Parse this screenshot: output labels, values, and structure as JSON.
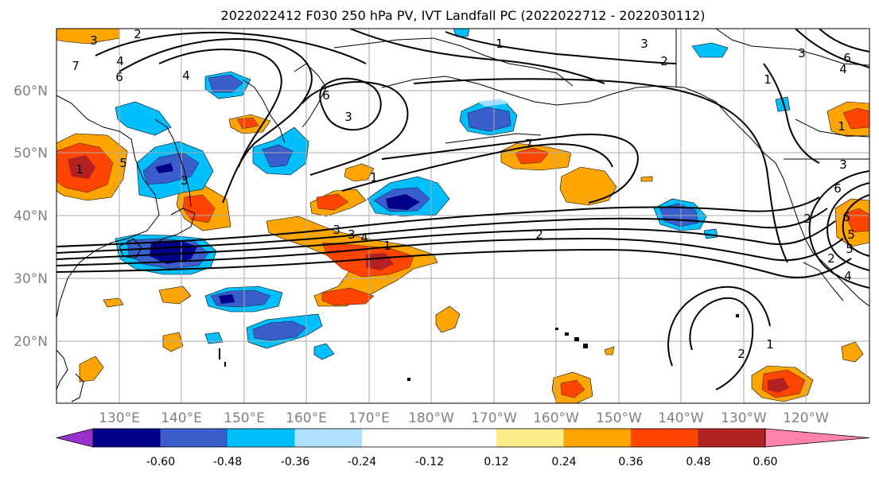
{
  "title": "2022022412 F030 250 hPa PV, IVT Landfall PC (2022022712 - 2022030112)",
  "lat_labels": [
    "60°N",
    "50°N",
    "40°N",
    "30°N",
    "20°N"
  ],
  "lon_labels": [
    "130°E",
    "140°E",
    "150°E",
    "160°E",
    "170°E",
    "180°W",
    "170°W",
    "160°W",
    "150°W",
    "140°W",
    "130°W",
    "120°W"
  ],
  "colorbar": {
    "colors": [
      "#9932cc",
      "#00008b",
      "#3a5fcd",
      "#00bfff",
      "#b0e2ff",
      "#ffffff",
      "#ffffff",
      "#ffec8b",
      "#ffa500",
      "#ff4500",
      "#b22222",
      "#ff82ab"
    ],
    "tick_labels": [
      "-0.60",
      "-0.48",
      "-0.36",
      "-0.24",
      "-0.12",
      "0.12",
      "0.24",
      "0.36",
      "0.48",
      "0.60"
    ]
  },
  "contour_labels": [
    "3",
    "2",
    "7",
    "6",
    "4",
    "5",
    "1",
    "3",
    "4",
    "3",
    "6",
    "1",
    "3",
    "4",
    "3",
    "1",
    "1",
    "6",
    "4",
    "3",
    "1",
    "2",
    "3",
    "2",
    "1",
    "2",
    "7",
    "5",
    "4",
    "6",
    "6",
    "5",
    "3",
    "2",
    "2",
    "1"
  ]
}
